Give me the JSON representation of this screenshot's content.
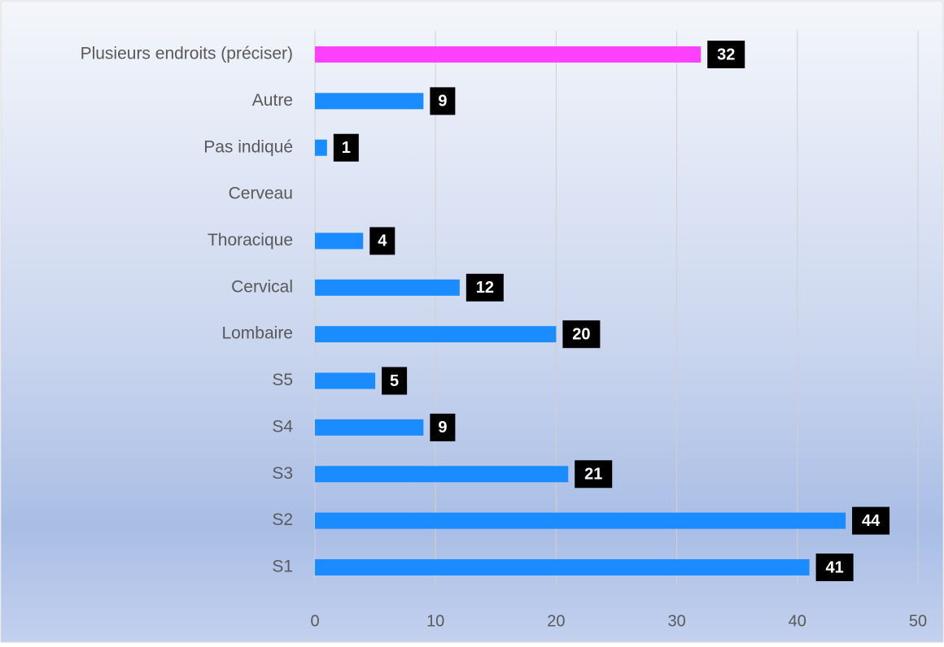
{
  "chart_data": {
    "type": "barh",
    "categories": [
      "Plusieurs endroits (préciser)",
      "Autre",
      "Pas indiqué",
      "Cerveau",
      "Thoracique",
      "Cervical",
      "Lombaire",
      "S5",
      "S4",
      "S3",
      "S2",
      "S1"
    ],
    "values": [
      32,
      9,
      1,
      null,
      4,
      12,
      20,
      5,
      9,
      21,
      44,
      41
    ],
    "colors": [
      "#ff40ff",
      "#1a8cff",
      "#1a8cff",
      "#1a8cff",
      "#1a8cff",
      "#1a8cff",
      "#1a8cff",
      "#1a8cff",
      "#1a8cff",
      "#1a8cff",
      "#1a8cff",
      "#1a8cff"
    ],
    "xlim": [
      0,
      50
    ],
    "xticks": [
      0,
      10,
      20,
      30,
      40,
      50
    ],
    "grid": true
  }
}
